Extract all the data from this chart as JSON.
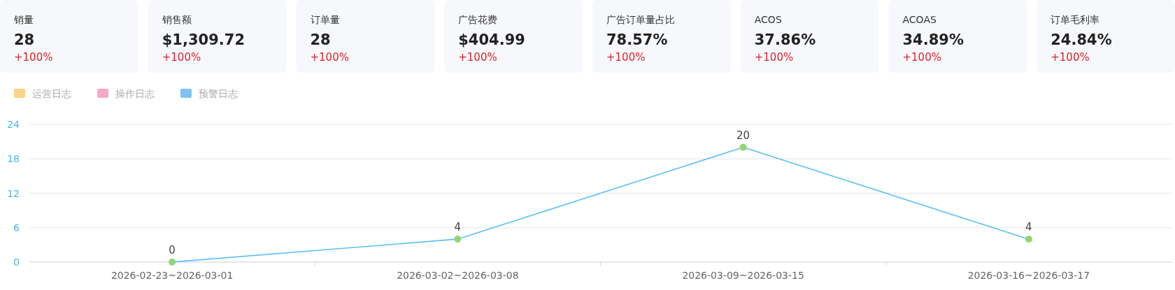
{
  "chart_data": [
    {
      "type": "other",
      "annotations": [
        "销量",
        "28",
        "+100%",
        "销售额",
        "$1,309.72",
        "+100%",
        "订单量",
        "28",
        "+100%",
        "广告花费",
        "$404.99",
        "+100%",
        "广告订单量占比",
        "78.57%",
        "+100%",
        "ACOS",
        "37.86%",
        "+100%",
        "ACOAS",
        "34.89%",
        "+100%",
        "订单毛利率",
        "24.84%",
        "+100%"
      ]
    },
    {
      "type": "line",
      "categories": [
        "2026-02-23~2026-03-01",
        "2026-03-02~2026-03-08",
        "2026-03-09~2026-03-15",
        "2026-03-16~2026-03-17"
      ],
      "series": [
        {
          "color": "#5cc0f7",
          "colors": [
            "#95d475",
            "#95d475",
            "#95d475",
            "#95d475"
          ],
          "values": [
            0,
            4,
            20,
            4
          ]
        }
      ],
      "ylim": [
        0,
        24
      ],
      "yticks": [
        0,
        6,
        12,
        18,
        24
      ],
      "grid": "y",
      "data_labels": true,
      "marker": "circle",
      "annotations": [
        "运营日志",
        "操作日志",
        "预警日志"
      ]
    }
  ]
}
